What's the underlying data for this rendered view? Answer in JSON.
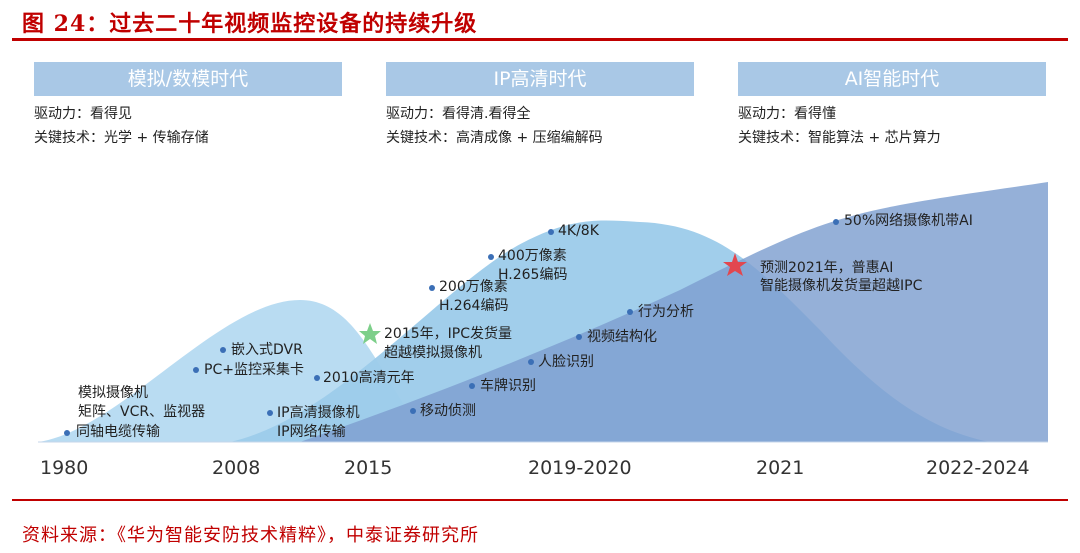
{
  "figure_title": "图 24：过去二十年视频监控设备的持续升级",
  "source": "资料来源：《华为智能安防技术精粹》，中泰证券研究所",
  "eras": [
    {
      "title": "模拟/数模时代",
      "driver": "驱动力：看得见",
      "tech": "关键技术：光学 + 传输存储"
    },
    {
      "title": "IP高清时代",
      "driver": "驱动力：看得清.看得全",
      "tech": "关键技术：高清成像 + 压缩编解码"
    },
    {
      "title": "AI智能时代",
      "driver": "驱动力：看得懂",
      "tech": "关键技术：智能算法 + 芯片算力"
    }
  ],
  "years": [
    "1980",
    "2008",
    "2015",
    "2019-2020",
    "2021",
    "2022-2024"
  ],
  "annotations": {
    "analog_l1": "模拟摄像机",
    "analog_l2": "矩阵、VCR、监视器",
    "coax": "同轴电缆传输",
    "dvr": "嵌入式DVR",
    "pc": "PC+监控采集卡",
    "hd_year": "2010高清元年",
    "ipcam": "IP高清摄像机",
    "ipnet": "IP网络传输",
    "motion": "移动侦测",
    "cross2015_l1": "2015年，IPC发货量",
    "cross2015_l2": "超越模拟摄像机",
    "mp2_l1": "200万像素",
    "mp2_l2": "H.264编码",
    "mp4_l1": "400万像素",
    "mp4_l2": "H.265编码",
    "k4": "4K/8K",
    "plate": "车牌识别",
    "face": "人脸识别",
    "structure": "视频结构化",
    "behavior": "行为分析",
    "pred_l1": "预测2021年，普惠AI",
    "pred_l2": "智能摄像机发货量超越IPC",
    "ai50": "50%网络摄像机带AI"
  },
  "colors": {
    "title_red": "#c00000",
    "header_fill": "#a9c8e6",
    "wave_analog": "#b9dcf2",
    "wave_ip": "#9ccbea",
    "wave_ai": "#7e9fd0",
    "dot": "#3b6fb6",
    "star_green": "#7dcf8a",
    "star_red": "#e2474f"
  }
}
